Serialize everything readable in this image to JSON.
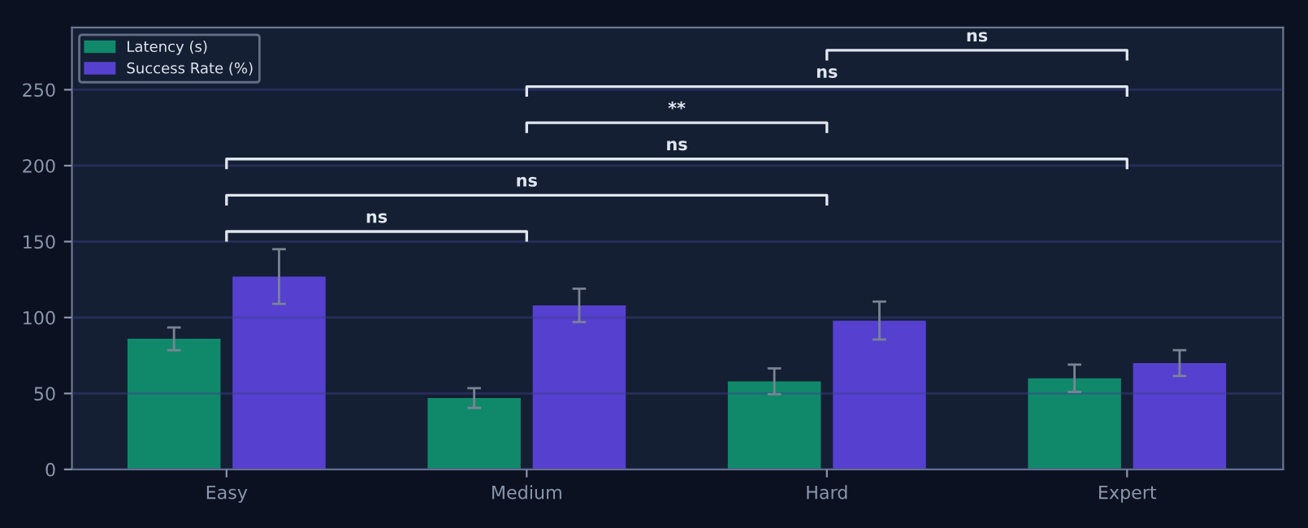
{
  "chart_data": {
    "type": "bar",
    "categories": [
      "Easy",
      "Medium",
      "Hard",
      "Expert"
    ],
    "series": [
      {
        "name": "Latency (s)",
        "color": "#10896b",
        "values": [
          86,
          47,
          58,
          60
        ],
        "errors": [
          7.5,
          6.5,
          8.5,
          9
        ]
      },
      {
        "name": "Success Rate (%)",
        "color": "#5640d0",
        "values": [
          127,
          108,
          98,
          70
        ],
        "errors": [
          18,
          11,
          12.5,
          8.5
        ]
      }
    ],
    "ylim": [
      0,
      291
    ],
    "yticks": [
      0,
      50,
      100,
      150,
      200,
      250
    ],
    "grid": "y",
    "legend": "top left",
    "annotations": [
      "ns",
      "ns",
      "ns",
      "**",
      "ns",
      "ns"
    ]
  }
}
